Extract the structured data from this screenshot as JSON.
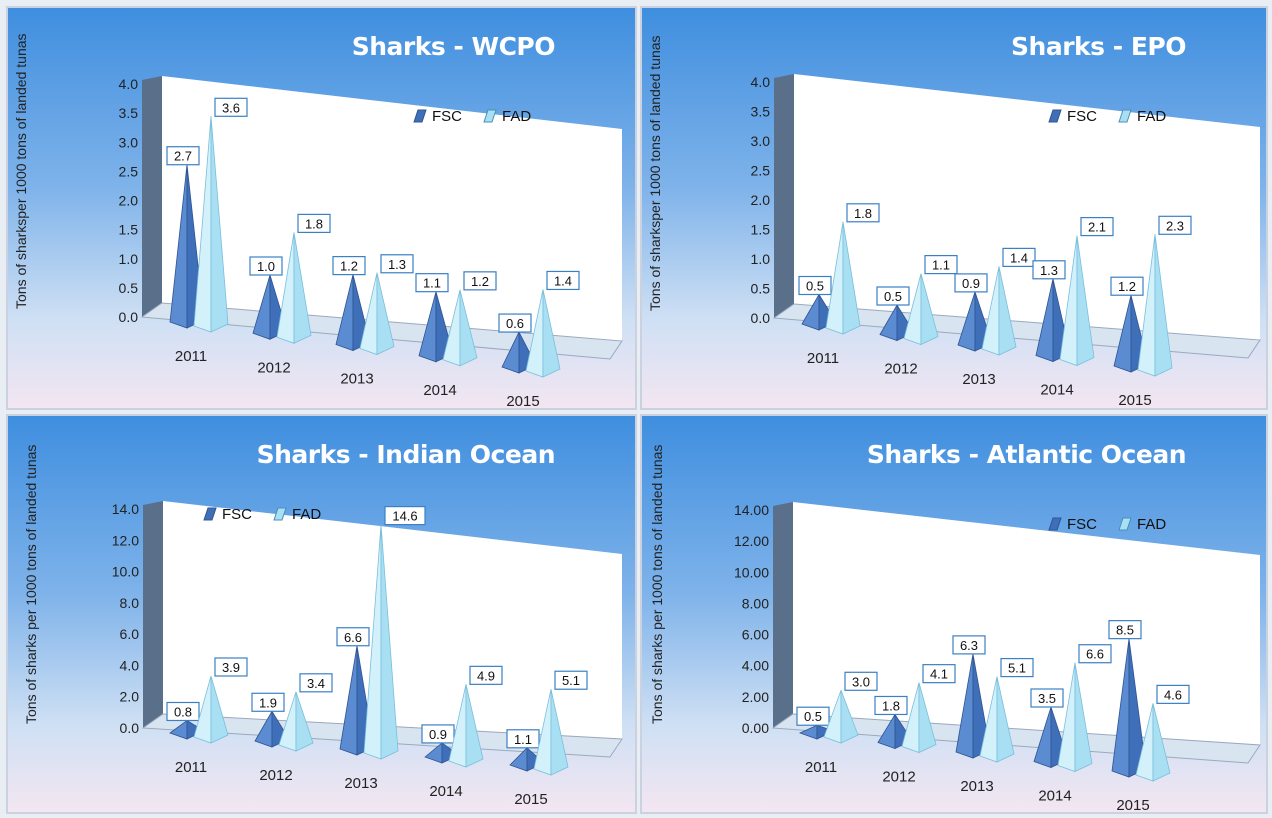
{
  "colors": {
    "fsc": "#3f6fb8",
    "fad": "#a9dff2"
  },
  "chart_data": [
    {
      "type": "bar",
      "title": "Sharks - WCPO",
      "ylabel": "Tons of sharksper 1000 tons of landed tunas",
      "ylim": [
        0,
        4.0
      ],
      "ticks": [
        "0.0",
        "0.5",
        "1.0",
        "1.5",
        "2.0",
        "2.5",
        "3.0",
        "3.5",
        "4.0"
      ],
      "categories": [
        "2011",
        "2012",
        "2013",
        "2014",
        "2015"
      ],
      "series": [
        {
          "name": "FSC",
          "values": [
            2.7,
            1.0,
            1.2,
            1.1,
            0.6
          ],
          "labels": [
            "2.7",
            "1.0",
            "1.2",
            "1.1",
            "0.6"
          ]
        },
        {
          "name": "FAD",
          "values": [
            3.6,
            1.8,
            1.3,
            1.2,
            1.4
          ],
          "labels": [
            "3.6",
            "1.8",
            "1.3",
            "1.2",
            "1.4"
          ]
        }
      ],
      "legend": "top-right"
    },
    {
      "type": "bar",
      "title": "Sharks - EPO",
      "ylabel": "Tons of sharksper 1000 tons of landed tunas",
      "ylim": [
        0,
        4.0
      ],
      "ticks": [
        "0.0",
        "0.5",
        "1.0",
        "1.5",
        "2.0",
        "2.5",
        "3.0",
        "3.5",
        "4.0"
      ],
      "categories": [
        "2011",
        "2012",
        "2013",
        "2014",
        "2015"
      ],
      "series": [
        {
          "name": "FSC",
          "values": [
            0.5,
            0.5,
            0.9,
            1.3,
            1.2
          ],
          "labels": [
            "0.5",
            "0.5",
            "0.9",
            "1.3",
            "1.2"
          ]
        },
        {
          "name": "FAD",
          "values": [
            1.8,
            1.1,
            1.4,
            2.1,
            2.3
          ],
          "labels": [
            "1.8",
            "1.1",
            "1.4",
            "2.1",
            "2.3"
          ]
        }
      ],
      "legend": "top-right"
    },
    {
      "type": "bar",
      "title": "Sharks - Indian Ocean",
      "ylabel": "Tons of sharks per 1000 tons of landed tunas",
      "ylim": [
        0,
        14.0
      ],
      "ticks": [
        "0.0",
        "2.0",
        "4.0",
        "6.0",
        "8.0",
        "10.0",
        "12.0",
        "14.0"
      ],
      "categories": [
        "2011",
        "2012",
        "2013",
        "2014",
        "2015"
      ],
      "series": [
        {
          "name": "FSC",
          "values": [
            0.8,
            1.9,
            6.6,
            0.9,
            1.1
          ],
          "labels": [
            "0.8",
            "1.9",
            "6.6",
            "0.9",
            "1.1"
          ]
        },
        {
          "name": "FAD",
          "values": [
            3.9,
            3.4,
            14.6,
            4.9,
            5.1
          ],
          "labels": [
            "3.9",
            "3.4",
            "14.6",
            "4.9",
            "5.1"
          ]
        }
      ],
      "legend": "top-left"
    },
    {
      "type": "bar",
      "title": "Sharks - Atlantic Ocean",
      "ylabel": "Tons of sharks per 1000 tons of landed tunas",
      "ylim": [
        0,
        14.0
      ],
      "ticks": [
        "0.00",
        "2.00",
        "4.00",
        "6.00",
        "8.00",
        "10.00",
        "12.00",
        "14.00"
      ],
      "categories": [
        "2011",
        "2012",
        "2013",
        "2014",
        "2015"
      ],
      "series": [
        {
          "name": "FSC",
          "values": [
            0.5,
            1.8,
            6.3,
            3.5,
            8.5
          ],
          "labels": [
            "0.5",
            "1.8",
            "6.3",
            "3.5",
            "8.5"
          ]
        },
        {
          "name": "FAD",
          "values": [
            3.0,
            4.1,
            5.1,
            6.6,
            4.6
          ],
          "labels": [
            "3.0",
            "4.1",
            "5.1",
            "6.6",
            "4.6"
          ]
        }
      ],
      "legend": "top-right"
    }
  ]
}
